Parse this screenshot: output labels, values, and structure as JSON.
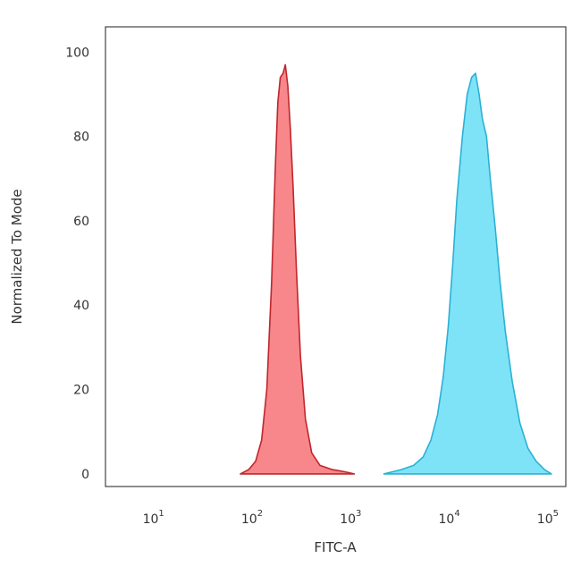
{
  "chart_data": {
    "type": "area",
    "title": "",
    "xlabel": "FITC-A",
    "ylabel": "Normalized To Mode",
    "xscale": "log",
    "xlim": [
      3,
      140000
    ],
    "ylim": [
      -3,
      106
    ],
    "x_ticks": [
      {
        "base": "10",
        "exp": "1",
        "value": 10
      },
      {
        "base": "10",
        "exp": "2",
        "value": 100
      },
      {
        "base": "10",
        "exp": "3",
        "value": 1000
      },
      {
        "base": "10",
        "exp": "4",
        "value": 10000
      },
      {
        "base": "10",
        "exp": "5",
        "value": 100000
      }
    ],
    "y_ticks": [
      {
        "label": "0",
        "value": 0
      },
      {
        "label": "20",
        "value": 20
      },
      {
        "label": "40",
        "value": 40
      },
      {
        "label": "60",
        "value": 60
      },
      {
        "label": "80",
        "value": 80
      },
      {
        "label": "100",
        "value": 100
      }
    ],
    "grid": false,
    "legend": "none",
    "series": [
      {
        "fill": "#f7878b",
        "stroke": "#c0262c",
        "points": [
          [
            70,
            0
          ],
          [
            85,
            1
          ],
          [
            100,
            3
          ],
          [
            115,
            8
          ],
          [
            130,
            20
          ],
          [
            145,
            45
          ],
          [
            158,
            72
          ],
          [
            168,
            88
          ],
          [
            178,
            94
          ],
          [
            190,
            95
          ],
          [
            200,
            97
          ],
          [
            212,
            92
          ],
          [
            225,
            82
          ],
          [
            240,
            68
          ],
          [
            260,
            48
          ],
          [
            285,
            28
          ],
          [
            320,
            13
          ],
          [
            370,
            5
          ],
          [
            450,
            2
          ],
          [
            600,
            1
          ],
          [
            800,
            0.5
          ],
          [
            1000,
            0
          ]
        ]
      },
      {
        "fill": "#7fe3f7",
        "stroke": "#2bb1d4",
        "points": [
          [
            2000,
            0
          ],
          [
            3000,
            1
          ],
          [
            4000,
            2
          ],
          [
            5000,
            4
          ],
          [
            6000,
            8
          ],
          [
            7000,
            14
          ],
          [
            8000,
            23
          ],
          [
            9000,
            35
          ],
          [
            10000,
            50
          ],
          [
            11000,
            65
          ],
          [
            12500,
            80
          ],
          [
            14000,
            90
          ],
          [
            15500,
            94
          ],
          [
            17000,
            95
          ],
          [
            18500,
            90
          ],
          [
            20000,
            84
          ],
          [
            22000,
            80
          ],
          [
            24000,
            70
          ],
          [
            27000,
            58
          ],
          [
            30000,
            46
          ],
          [
            34000,
            34
          ],
          [
            40000,
            22
          ],
          [
            48000,
            12
          ],
          [
            58000,
            6
          ],
          [
            70000,
            3
          ],
          [
            85000,
            1
          ],
          [
            100000,
            0
          ]
        ]
      }
    ]
  }
}
